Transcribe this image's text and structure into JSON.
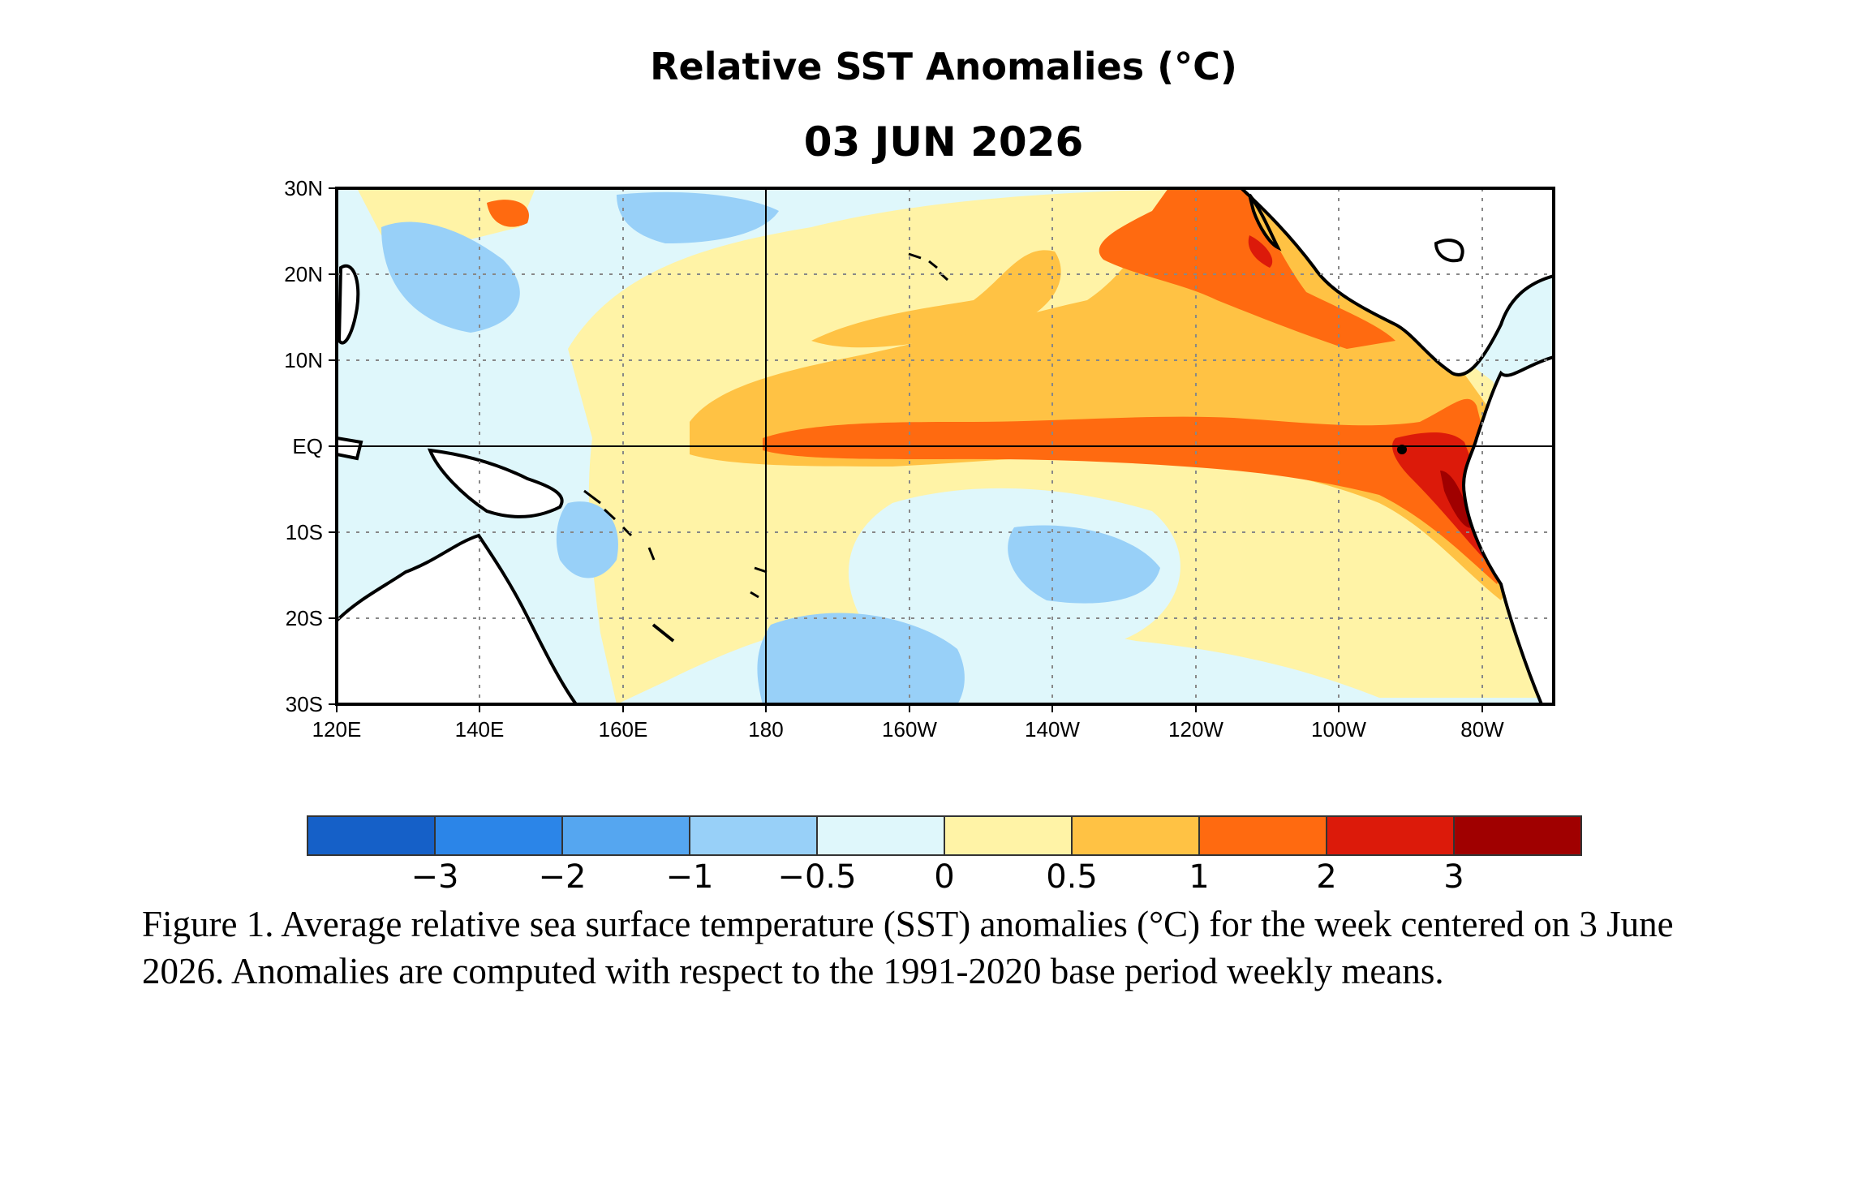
{
  "title": "Relative SST Anomalies (°C)",
  "date": "03 JUN 2026",
  "map": {
    "lon_labels": [
      "120E",
      "140E",
      "160E",
      "180",
      "160W",
      "140W",
      "120W",
      "100W",
      "80W"
    ],
    "lat_labels": [
      "30N",
      "20N",
      "10N",
      "EQ",
      "10S",
      "20S",
      "30S"
    ],
    "colors": {
      "land": "#ffffff",
      "ocean_near_zero": "#dff7fb"
    }
  },
  "colorbar": {
    "colors": [
      "#1560c8",
      "#2b85e8",
      "#55a6f0",
      "#98d0f8",
      "#dff7fb",
      "#fff3a6",
      "#ffc244",
      "#ff6a10",
      "#dc1a0a",
      "#a00000"
    ],
    "labels": [
      "−3",
      "−2",
      "−1",
      "−0.5",
      "0",
      "0.5",
      "1",
      "2",
      "3"
    ]
  },
  "caption": "Figure 1. Average relative sea surface temperature (SST) anomalies (°C) for the week centered on 3 June 2026.  Anomalies are computed with respect to the 1991-2020 base period weekly means."
}
